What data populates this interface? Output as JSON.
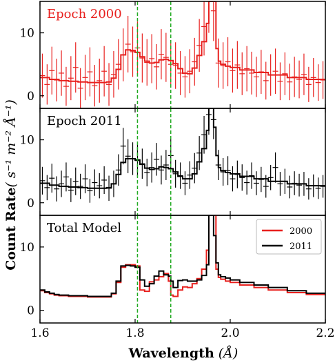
{
  "chart_data": {
    "type": "line",
    "xlabel": "Wavelength",
    "xlabel_unit": "(Å)",
    "ylabel": "Count Rate",
    "ylabel_unit": "( s⁻¹ m⁻² Å⁻¹)",
    "xlim": [
      1.6,
      2.2
    ],
    "x_ticks": [
      1.6,
      1.8,
      2.0,
      2.2
    ],
    "x_tick_labels": [
      "1.6",
      "1.8",
      "2.0",
      "2.2"
    ],
    "vlines": [
      1.805,
      1.875
    ],
    "vline_color": "#22aa22",
    "panels": [
      {
        "label": "Epoch 2000",
        "color": "#e8201e",
        "ylim": [
          -2,
          15
        ],
        "y_ticks": [
          0,
          10
        ],
        "y_tick_labels": [
          "0",
          "10"
        ],
        "series": [
          {
            "kind": "model",
            "x": [
              1.6,
              1.62,
              1.64,
              1.66,
              1.68,
              1.7,
              1.72,
              1.74,
              1.75,
              1.76,
              1.77,
              1.78,
              1.79,
              1.8,
              1.81,
              1.82,
              1.83,
              1.84,
              1.85,
              1.86,
              1.87,
              1.88,
              1.89,
              1.9,
              1.91,
              1.92,
              1.93,
              1.94,
              1.95,
              1.955,
              1.96,
              1.965,
              1.97,
              1.975,
              1.98,
              1.99,
              2.0,
              2.02,
              2.05,
              2.08,
              2.12,
              2.16,
              2.2
            ],
            "y": [
              2.9,
              2.6,
              2.4,
              2.3,
              2.2,
              2.1,
              2.1,
              2.2,
              2.8,
              4.2,
              6.5,
              7.3,
              7.2,
              6.9,
              6.2,
              5.5,
              5.2,
              5.3,
              5.7,
              5.8,
              5.6,
              5.1,
              4.3,
              3.6,
              3.5,
              4.4,
              6.4,
              8.6,
              11.5,
              15,
              15,
              15,
              7.5,
              5.5,
              5.0,
              4.7,
              4.5,
              4.1,
              3.7,
              3.3,
              2.9,
              2.6,
              2.4
            ]
          },
          {
            "kind": "data",
            "x": [
              1.605,
              1.615,
              1.625,
              1.635,
              1.645,
              1.655,
              1.665,
              1.675,
              1.685,
              1.695,
              1.705,
              1.715,
              1.725,
              1.735,
              1.745,
              1.755,
              1.765,
              1.775,
              1.785,
              1.795,
              1.805,
              1.815,
              1.825,
              1.835,
              1.845,
              1.855,
              1.865,
              1.875,
              1.885,
              1.895,
              1.905,
              1.915,
              1.925,
              1.935,
              1.945,
              1.955,
              1.965,
              1.975,
              1.985,
              1.995,
              2.005,
              2.015,
              2.025,
              2.035,
              2.045,
              2.055,
              2.065,
              2.075,
              2.085,
              2.095,
              2.105,
              2.115,
              2.125,
              2.135,
              2.145,
              2.155,
              2.165,
              2.175,
              2.185,
              2.195
            ],
            "y": [
              3.2,
              1.8,
              4.0,
              2.5,
              3.6,
              1.5,
              2.8,
              4.5,
              1.2,
              2.9,
              3.8,
              1.6,
              2.4,
              3.9,
              1.8,
              3.4,
              5.0,
              6.5,
              8.2,
              7.0,
              7.6,
              6.0,
              5.3,
              5.9,
              4.6,
              6.6,
              6.1,
              5.0,
              4.8,
              3.6,
              3.0,
              3.9,
              5.4,
              8.0,
              11.0,
              15.0,
              13.5,
              5.2,
              4.8,
              5.4,
              4.0,
              4.9,
              3.5,
              4.3,
              3.6,
              3.0,
              3.8,
              2.4,
              3.3,
              3.9,
              2.3,
              3.5,
              2.2,
              3.0,
              2.6,
              3.4,
              1.8,
              2.9,
              2.1,
              2.5
            ],
            "yerr": [
              3.5,
              3.2,
              3.8,
              3.4,
              3.6,
              3.1,
              3.5,
              4.0,
              3.2,
              3.6,
              3.9,
              3.3,
              3.5,
              4.0,
              3.4,
              3.7,
              4.0,
              4.2,
              4.5,
              4.0,
              4.2,
              3.9,
              3.7,
              3.9,
              3.6,
              4.0,
              3.9,
              3.6,
              3.7,
              3.5,
              3.3,
              3.5,
              3.8,
              4.2,
              4.6,
              5.0,
              4.8,
              3.9,
              3.7,
              3.9,
              3.5,
              3.8,
              3.4,
              3.6,
              3.4,
              3.2,
              3.5,
              3.0,
              3.3,
              3.6,
              3.0,
              3.4,
              2.9,
              3.2,
              3.0,
              3.3,
              2.8,
              3.1,
              2.9,
              3.0
            ]
          }
        ]
      },
      {
        "label": "Epoch 2011",
        "color": "#000000",
        "ylim": [
          -2,
          15
        ],
        "y_ticks": [
          0,
          10
        ],
        "y_tick_labels": [
          "0",
          "10"
        ],
        "series": [
          {
            "kind": "model",
            "x": [
              1.6,
              1.62,
              1.64,
              1.66,
              1.68,
              1.7,
              1.72,
              1.74,
              1.75,
              1.76,
              1.77,
              1.78,
              1.79,
              1.8,
              1.81,
              1.82,
              1.83,
              1.84,
              1.85,
              1.86,
              1.87,
              1.88,
              1.89,
              1.9,
              1.91,
              1.92,
              1.93,
              1.94,
              1.95,
              1.955,
              1.96,
              1.965,
              1.97,
              1.975,
              1.98,
              1.99,
              2.0,
              2.02,
              2.05,
              2.08,
              2.12,
              2.16,
              2.2
            ],
            "y": [
              3.1,
              2.8,
              2.6,
              2.5,
              2.4,
              2.3,
              2.3,
              2.4,
              3.0,
              4.5,
              6.4,
              7.0,
              7.0,
              6.8,
              6.1,
              5.5,
              5.3,
              5.4,
              5.7,
              5.6,
              5.4,
              4.9,
              4.2,
              3.8,
              3.8,
              4.6,
              6.5,
              8.6,
              11.5,
              15,
              15,
              12,
              7.5,
              5.6,
              5.1,
              4.8,
              4.6,
              4.2,
              3.8,
              3.4,
              3.0,
              2.7,
              2.5
            ]
          },
          {
            "kind": "data",
            "x": [
              1.605,
              1.615,
              1.625,
              1.635,
              1.645,
              1.655,
              1.665,
              1.675,
              1.685,
              1.695,
              1.705,
              1.715,
              1.725,
              1.735,
              1.745,
              1.755,
              1.765,
              1.775,
              1.785,
              1.795,
              1.805,
              1.815,
              1.825,
              1.835,
              1.845,
              1.855,
              1.865,
              1.875,
              1.885,
              1.895,
              1.905,
              1.915,
              1.925,
              1.935,
              1.945,
              1.955,
              1.965,
              1.975,
              1.985,
              1.995,
              2.005,
              2.015,
              2.025,
              2.035,
              2.045,
              2.055,
              2.065,
              2.075,
              2.085,
              2.095,
              2.105,
              2.115,
              2.125,
              2.135,
              2.145,
              2.155,
              2.165,
              2.175,
              2.185,
              2.195
            ],
            "y": [
              3.5,
              2.4,
              3.9,
              2.2,
              3.0,
              4.1,
              2.0,
              3.4,
              2.6,
              3.8,
              1.9,
              3.2,
              2.7,
              3.6,
              2.3,
              3.0,
              5.2,
              9.0,
              7.4,
              7.0,
              6.7,
              6.2,
              4.8,
              5.6,
              6.9,
              5.2,
              6.0,
              7.5,
              4.6,
              4.3,
              3.1,
              4.4,
              5.5,
              7.9,
              10.8,
              14.0,
              13.2,
              6.0,
              4.9,
              5.1,
              3.8,
              4.5,
              4.0,
              3.2,
              4.3,
              3.1,
              3.7,
              2.6,
              4.0,
              5.6,
              3.0,
              3.4,
              2.5,
              3.1,
              2.8,
              3.0,
              2.2,
              2.7,
              2.3,
              2.6
            ],
            "yerr": [
              2.2,
              2.0,
              2.3,
              2.0,
              2.1,
              2.3,
              1.9,
              2.2,
              2.0,
              2.3,
              1.9,
              2.1,
              2.0,
              2.2,
              2.0,
              2.1,
              2.5,
              2.9,
              2.7,
              2.6,
              2.5,
              2.4,
              2.2,
              2.4,
              2.6,
              2.3,
              2.4,
              2.7,
              2.2,
              2.1,
              1.9,
              2.2,
              2.4,
              2.7,
              3.0,
              3.2,
              3.1,
              2.4,
              2.2,
              2.3,
              2.0,
              2.2,
              2.1,
              1.9,
              2.1,
              1.9,
              2.0,
              1.8,
              2.0,
              2.4,
              1.9,
              2.0,
              1.8,
              1.9,
              1.8,
              1.9,
              1.7,
              1.8,
              1.7,
              1.8
            ]
          }
        ]
      },
      {
        "label": "Total Model",
        "color": "#000000",
        "ylim": [
          -2,
          15
        ],
        "y_ticks": [
          0,
          10
        ],
        "y_tick_labels": [
          "0",
          "10"
        ],
        "legend": {
          "placement": "top-right",
          "entries": [
            "2000",
            "2011"
          ]
        },
        "series": [
          {
            "name": "2000",
            "kind": "model",
            "color": "#e8201e",
            "x": [
              1.6,
              1.61,
              1.62,
              1.63,
              1.64,
              1.66,
              1.7,
              1.74,
              1.75,
              1.76,
              1.77,
              1.78,
              1.79,
              1.8,
              1.81,
              1.82,
              1.83,
              1.84,
              1.85,
              1.86,
              1.87,
              1.875,
              1.88,
              1.89,
              1.9,
              1.91,
              1.92,
              1.93,
              1.94,
              1.95,
              1.955,
              1.96,
              1.965,
              1.97,
              1.975,
              1.98,
              1.99,
              2.0,
              2.02,
              2.05,
              2.08,
              2.12,
              2.16,
              2.2
            ],
            "y": [
              3.1,
              2.8,
              2.6,
              2.4,
              2.3,
              2.2,
              2.1,
              2.1,
              2.6,
              4.4,
              6.8,
              7.2,
              7.2,
              7.0,
              3.2,
              3.0,
              4.5,
              4.8,
              5.3,
              5.8,
              4.6,
              2.4,
              2.2,
              3.2,
              3.7,
              3.6,
              4.2,
              5.0,
              6.5,
              9.5,
              15,
              15,
              15,
              6.5,
              5.2,
              4.9,
              4.6,
              4.4,
              4.0,
              3.6,
              3.2,
              2.8,
              2.5,
              2.3
            ]
          },
          {
            "name": "2011",
            "kind": "model",
            "color": "#000000",
            "x": [
              1.6,
              1.61,
              1.62,
              1.63,
              1.64,
              1.66,
              1.7,
              1.74,
              1.75,
              1.76,
              1.77,
              1.78,
              1.79,
              1.8,
              1.81,
              1.82,
              1.83,
              1.84,
              1.85,
              1.86,
              1.87,
              1.875,
              1.88,
              1.89,
              1.9,
              1.91,
              1.92,
              1.93,
              1.94,
              1.95,
              1.955,
              1.96,
              1.965,
              1.97,
              1.975,
              1.98,
              1.99,
              2.0,
              2.02,
              2.05,
              2.08,
              2.12,
              2.16,
              2.2
            ],
            "y": [
              3.2,
              2.9,
              2.7,
              2.5,
              2.4,
              2.3,
              2.2,
              2.2,
              2.7,
              4.6,
              7.0,
              7.1,
              7.0,
              6.8,
              4.8,
              3.8,
              4.2,
              5.4,
              6.2,
              5.6,
              5.4,
              4.6,
              3.6,
              4.7,
              4.8,
              4.6,
              4.6,
              4.8,
              5.5,
              7.2,
              15,
              15,
              11.8,
              7.5,
              5.6,
              5.3,
              5.1,
              4.8,
              4.4,
              4.0,
              3.6,
              3.1,
              2.7,
              2.5
            ]
          }
        ]
      }
    ]
  }
}
